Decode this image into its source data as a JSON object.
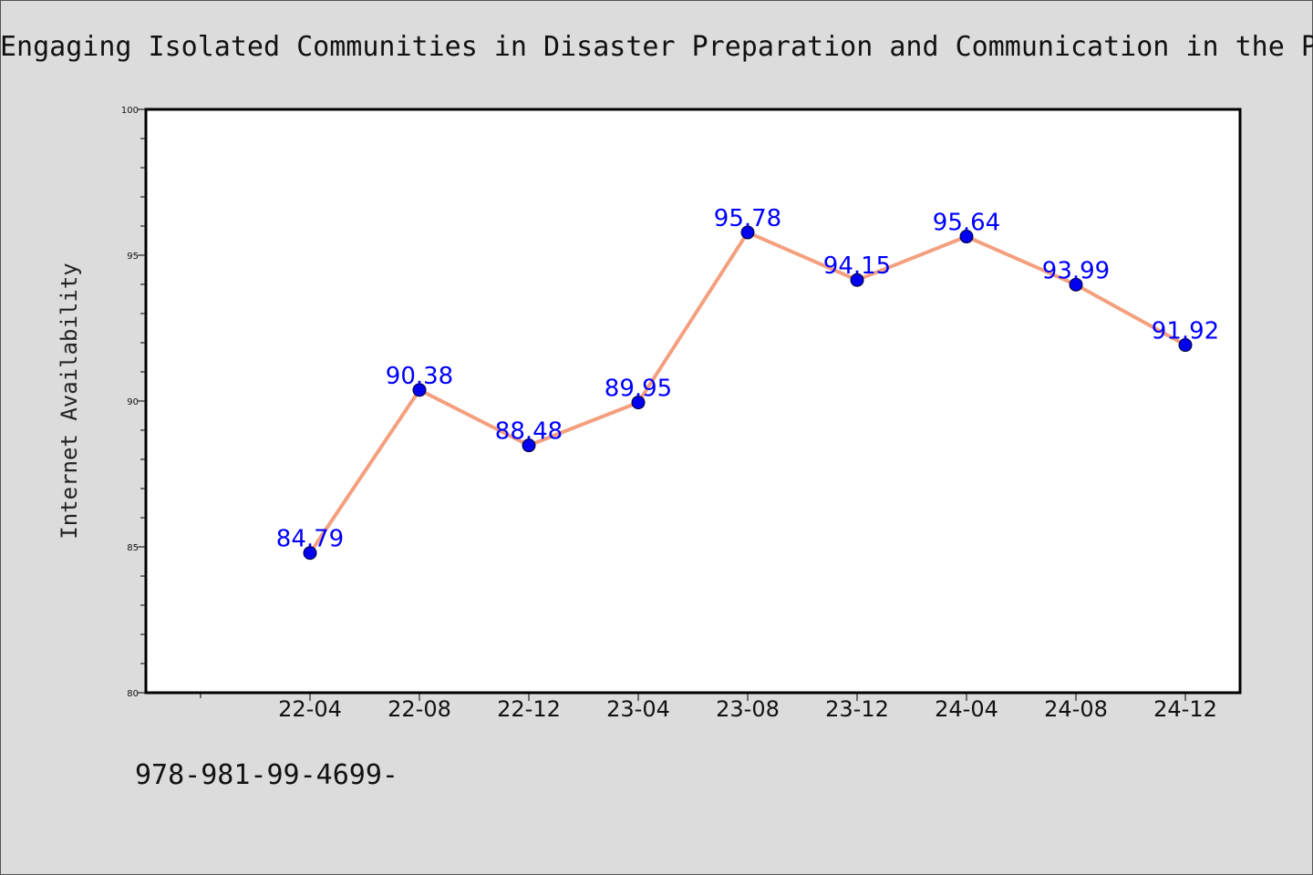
{
  "title": "Engaging Isolated Communities in Disaster Preparation and Communication in the P",
  "footer_text": "978-981-99-4699-",
  "colors": {
    "background": "#dcdcdc",
    "plot_background": "#ffffff",
    "line": "#f4a07f",
    "marker": "#0000ee",
    "data_label": "#0000ff",
    "axis": "#000000"
  },
  "chart_data": {
    "type": "line",
    "title": "Engaging Isolated Communities in Disaster Preparation and Communication in the P",
    "xlabel": "",
    "ylabel": "Internet Availability",
    "ylim": [
      80,
      100
    ],
    "yticks": [
      80,
      85,
      90,
      95,
      100
    ],
    "categories": [
      "22-04",
      "22-08",
      "22-12",
      "23-04",
      "23-08",
      "23-12",
      "24-04",
      "24-08",
      "24-12"
    ],
    "series": [
      {
        "values": [
          84.79,
          90.38,
          88.48,
          89.95,
          95.78,
          94.15,
          95.64,
          93.99,
          91.92
        ],
        "labels": [
          "84.79",
          "90.38",
          "88.48",
          "89.95",
          "95.78",
          "94.15",
          "95.64",
          "93.99",
          "91.92"
        ]
      }
    ],
    "grid": false,
    "legend": "none"
  }
}
